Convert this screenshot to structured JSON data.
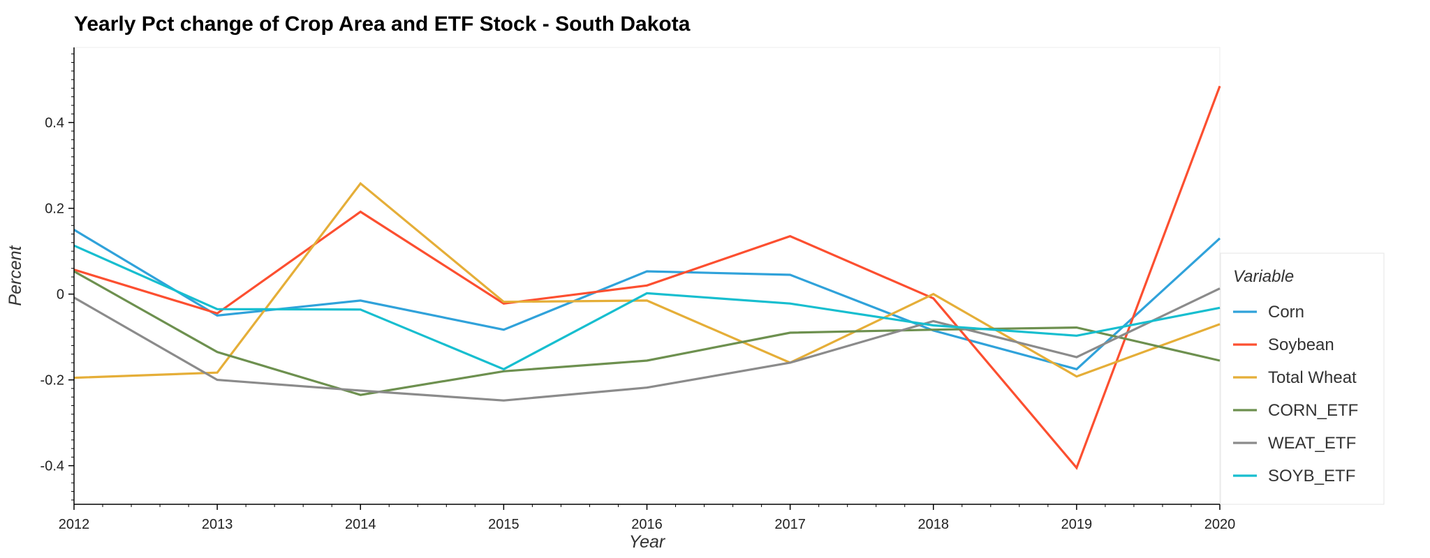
{
  "chart_data": {
    "type": "line",
    "title": "Yearly Pct change of Crop Area and ETF Stock - South Dakota",
    "xlabel": "Year",
    "ylabel": "Percent",
    "x": [
      2012,
      2013,
      2014,
      2015,
      2016,
      2017,
      2018,
      2019,
      2020
    ],
    "xlim": [
      2012,
      2020
    ],
    "ylim": [
      -0.49,
      0.575
    ],
    "yticks": [
      -0.4,
      -0.2,
      0,
      0.2,
      0.4
    ],
    "ytick_labels": [
      "-0.4",
      "-0.2",
      "0",
      "0.2",
      "0.4"
    ],
    "xtick_labels": [
      "2012",
      "2013",
      "2014",
      "2015",
      "2016",
      "2017",
      "2018",
      "2019",
      "2020"
    ],
    "grid": false,
    "legend": {
      "title": "Variable",
      "placement": "right"
    },
    "series": [
      {
        "name": "Corn",
        "color": "#30a2da",
        "values": [
          0.15,
          -0.05,
          -0.015,
          -0.083,
          0.053,
          0.045,
          -0.085,
          -0.175,
          0.13
        ]
      },
      {
        "name": "Soybean",
        "color": "#fc4f30",
        "values": [
          0.057,
          -0.045,
          0.192,
          -0.022,
          0.02,
          0.135,
          -0.01,
          -0.405,
          0.485
        ]
      },
      {
        "name": "Total Wheat",
        "color": "#e5ae38",
        "values": [
          -0.195,
          -0.183,
          0.258,
          -0.018,
          -0.015,
          -0.16,
          0.0,
          -0.192,
          -0.07
        ]
      },
      {
        "name": "CORN_ETF",
        "color": "#6d904f",
        "values": [
          0.053,
          -0.135,
          -0.235,
          -0.18,
          -0.155,
          -0.09,
          -0.083,
          -0.078,
          -0.155
        ]
      },
      {
        "name": "WEAT_ETF",
        "color": "#8b8b8b",
        "values": [
          -0.008,
          -0.2,
          -0.225,
          -0.248,
          -0.218,
          -0.16,
          -0.063,
          -0.147,
          0.013
        ]
      },
      {
        "name": "SOYB_ETF",
        "color": "#17becf",
        "values": [
          0.113,
          -0.035,
          -0.036,
          -0.175,
          0.002,
          -0.022,
          -0.073,
          -0.097,
          -0.032
        ]
      }
    ]
  }
}
